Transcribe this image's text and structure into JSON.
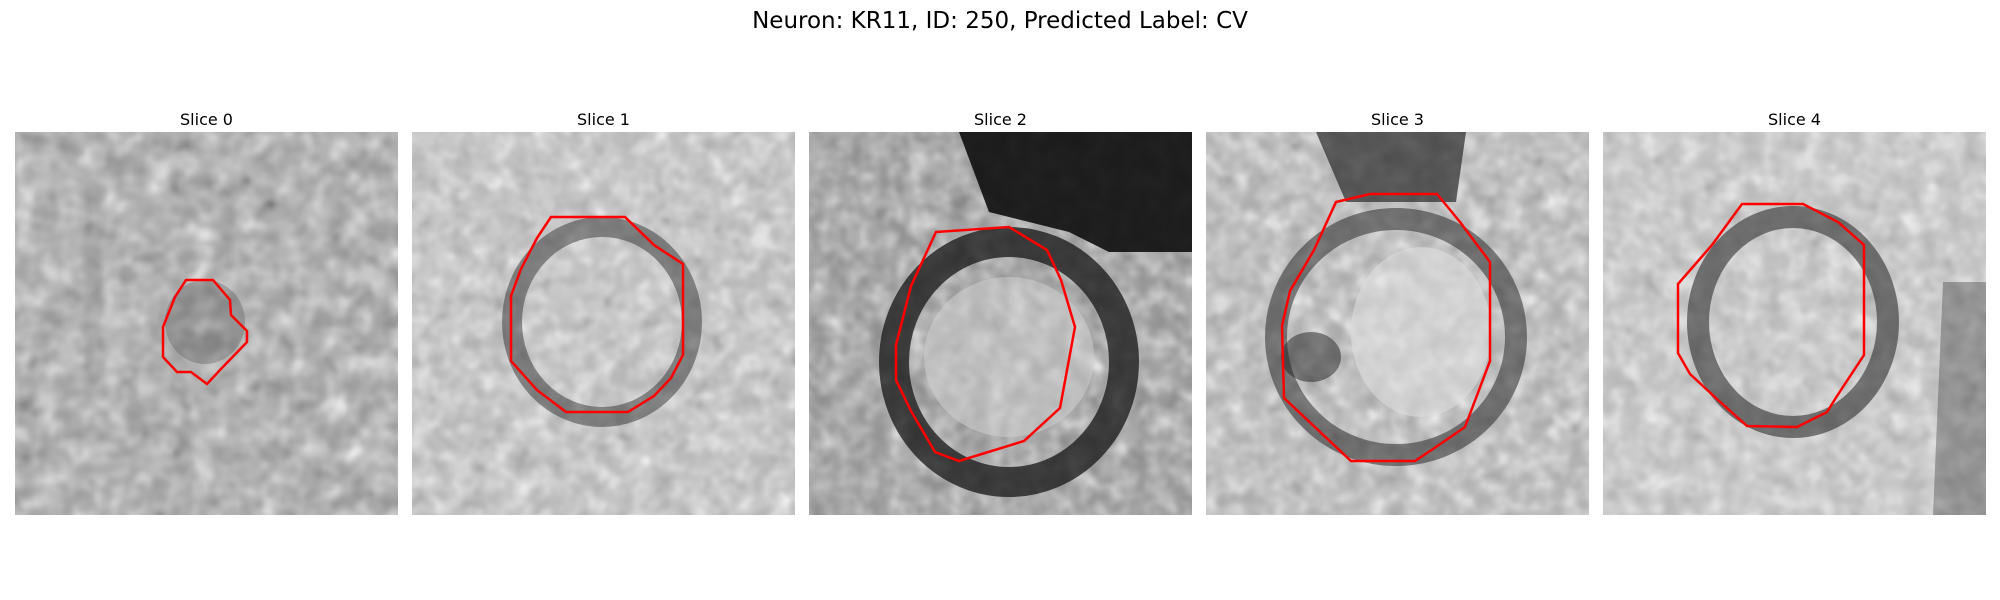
{
  "figure": {
    "title": "Neuron: KR11, ID: 250, Predicted Label: CV",
    "contour_color": "#ff0000",
    "slices": [
      {
        "title": "Slice 0"
      },
      {
        "title": "Slice 1"
      },
      {
        "title": "Slice 2"
      },
      {
        "title": "Slice 3"
      },
      {
        "title": "Slice 4"
      }
    ]
  }
}
